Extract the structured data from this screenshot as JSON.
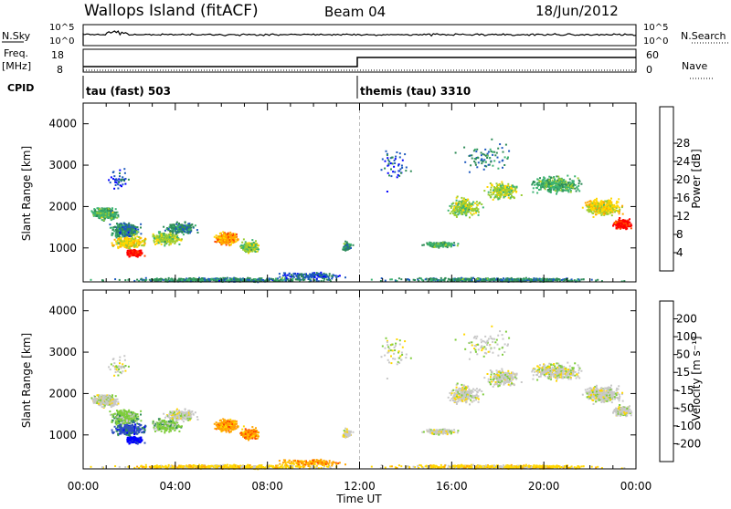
{
  "header": {
    "station": "Wallops Island (fitACF)",
    "beam": "Beam 04",
    "date": "18/Jun/2012"
  },
  "top_panels": {
    "nsky_label": "N.Sky",
    "nsky_ticks": [
      "10^5",
      "10^0"
    ],
    "nsearch_label": "N.Search",
    "nsearch_ticks": [
      "10^5",
      "10^0"
    ],
    "freq_label": "Freq.",
    "freq_unit": "[MHz]",
    "freq_ticks": [
      18,
      8
    ],
    "nave_label": "Nave",
    "nave_ticks": [
      60,
      0
    ],
    "cpid_label": "CPID",
    "cpid_segments": [
      {
        "label": "tau (fast) 503",
        "start_hour": 0
      },
      {
        "label": "themis (tau) 3310",
        "start_hour": 12
      }
    ]
  },
  "chart_data": [
    {
      "type": "heatmap",
      "name": "power",
      "ylabel": "Slant Range [km]",
      "yticks": [
        1000,
        2000,
        3000,
        4000
      ],
      "ylim": [
        180,
        4500
      ],
      "xlim": [
        0,
        24
      ],
      "colorbar": {
        "label": "Power [dB]",
        "ticks": [
          "4",
          "8",
          "12",
          "16",
          "20",
          "24",
          "28"
        ],
        "colors": [
          "#0000ff",
          "#1e5abe",
          "#2e8b57",
          "#3cb371",
          "#9acd32",
          "#ffd700",
          "#ffa500",
          "#ff4500",
          "#ff0000"
        ]
      }
    },
    {
      "type": "heatmap",
      "name": "velocity",
      "ylabel": "Slant Range [km]",
      "yticks": [
        1000,
        2000,
        3000,
        4000
      ],
      "ylim": [
        180,
        4500
      ],
      "xlim": [
        0,
        24
      ],
      "xlabel": "Time UT",
      "xticks": [
        "00:00",
        "04:00",
        "08:00",
        "12:00",
        "16:00",
        "20:00",
        "00:00"
      ],
      "colorbar": {
        "label": "Velocity [m s⁻¹]",
        "ticks": [
          "200",
          "100",
          "50",
          "15",
          "-15",
          "-50",
          "-100",
          "-200"
        ],
        "colors": [
          "#0000ff",
          "#3050c0",
          "#2e8b57",
          "#7fcd3c",
          "#c8c8c8",
          "#ffd700",
          "#ffa500",
          "#ff4500",
          "#ff0000"
        ]
      }
    }
  ]
}
